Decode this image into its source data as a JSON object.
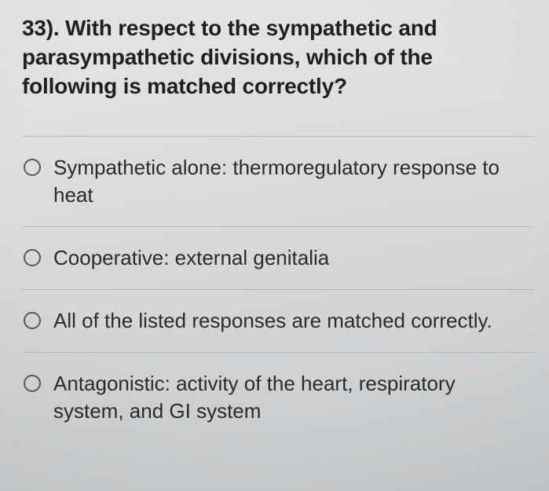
{
  "question": {
    "number_prefix": "33).",
    "stem": "33). With respect to the sympathetic and parasympathetic divisions, which of the following is matched correctly?",
    "stem_fontsize_pt": 21,
    "stem_fontweight": 700
  },
  "options": [
    {
      "label": "Sympathetic alone: thermoregulatory response to heat",
      "selected": false
    },
    {
      "label": "Cooperative: external genitalia",
      "selected": false
    },
    {
      "label": "All of the listed responses are matched correctly.",
      "selected": false
    },
    {
      "label": "Antagonistic: activity of the heart, respiratory system, and GI system",
      "selected": false
    }
  ],
  "style": {
    "background_gradient_top": "#e4e6e8",
    "background_gradient_bottom": "#c9ccce",
    "divider_color": "#b6b9bb",
    "text_color": "#2a2a2a",
    "radio_border_color": "#56595b",
    "option_fontsize_pt": 19,
    "font_family": "Helvetica Neue / Arial"
  }
}
